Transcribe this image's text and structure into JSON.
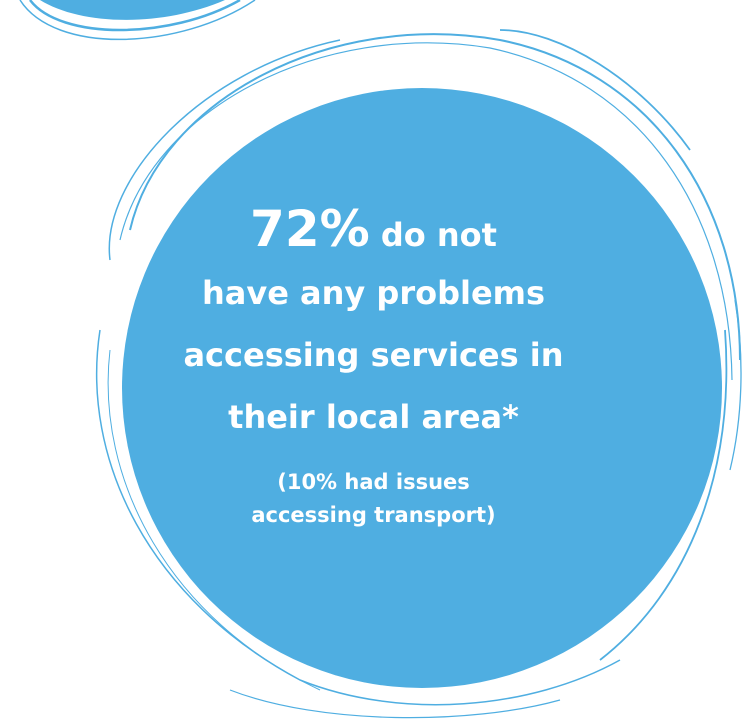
{
  "colors": {
    "circle_fill": "#4faee1",
    "stroke": "#4faee1",
    "text": "#ffffff",
    "background": "#ffffff"
  },
  "headline": {
    "stat": "72%",
    "line1_rest": " do not",
    "line2": "have any problems",
    "line3": "accessing services in",
    "line4": "their local area*"
  },
  "footnote": {
    "line1": "(10% had issues",
    "line2": "accessing transport)"
  }
}
